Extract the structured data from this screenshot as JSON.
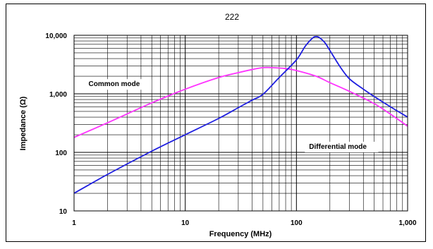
{
  "chart_data": {
    "type": "line",
    "title": "222",
    "xlabel": "Frequency (MHz)",
    "ylabel": "Impedance (Ω)",
    "x_scale": "log",
    "y_scale": "log",
    "xlim": [
      1,
      1000
    ],
    "ylim": [
      10,
      10000
    ],
    "x_ticks": [
      1,
      10,
      100,
      1000
    ],
    "x_tick_labels": [
      "1",
      "10",
      "100",
      "1,000"
    ],
    "y_ticks": [
      10,
      100,
      1000,
      10000
    ],
    "y_tick_labels": [
      "10",
      "100",
      "1,000",
      "10,000"
    ],
    "grid": true,
    "series": [
      {
        "name": "Common mode",
        "color": "#ff33ff",
        "x": [
          1,
          2,
          5,
          10,
          20,
          30,
          40,
          50,
          60,
          80,
          100,
          150,
          200,
          300,
          500,
          700,
          1000
        ],
        "y": [
          180,
          320,
          700,
          1200,
          1900,
          2300,
          2600,
          2800,
          2800,
          2700,
          2500,
          2000,
          1550,
          1100,
          680,
          450,
          280
        ]
      },
      {
        "name": "Differential mode",
        "color": "#1f1fe0",
        "x": [
          1,
          2,
          5,
          10,
          20,
          30,
          40,
          50,
          70,
          100,
          120,
          140,
          150,
          160,
          180,
          200,
          250,
          300,
          400,
          500,
          700,
          1000
        ],
        "y": [
          20,
          42,
          105,
          200,
          380,
          580,
          780,
          980,
          1900,
          3800,
          6500,
          9000,
          9500,
          9200,
          7500,
          5500,
          2800,
          1800,
          1200,
          900,
          600,
          400
        ]
      }
    ],
    "annotations": [
      {
        "text": "Common mode",
        "x": 1.35,
        "y": 1350
      },
      {
        "text": "Differential mode",
        "x": 130,
        "y": 115
      }
    ]
  }
}
